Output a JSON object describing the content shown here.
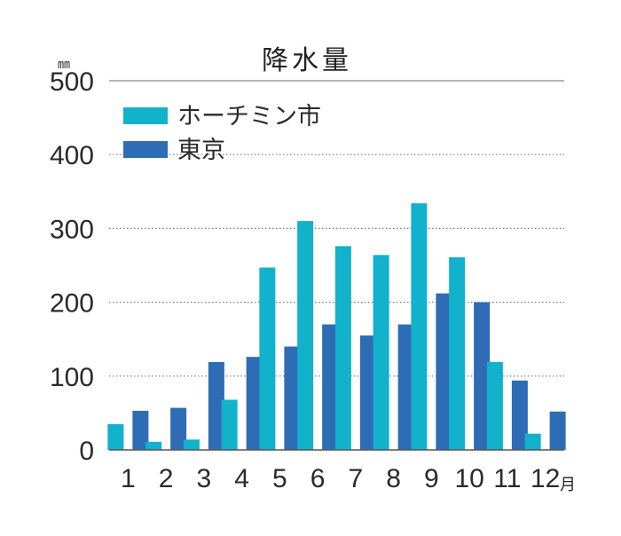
{
  "chart_data": {
    "type": "bar",
    "title": "降水量",
    "y_unit": "㎜",
    "x_unit": "月",
    "categories": [
      "1",
      "2",
      "3",
      "4",
      "5",
      "6",
      "7",
      "8",
      "9",
      "10",
      "11",
      "12"
    ],
    "ylim": [
      0,
      500
    ],
    "yticks": [
      0,
      100,
      200,
      300,
      400,
      500
    ],
    "grid": "dotted horizontal",
    "legend_position": "top-left",
    "series": [
      {
        "name": "ホーチミン市",
        "color": "#12b1cc",
        "values": [
          35,
          11,
          14,
          68,
          247,
          310,
          276,
          264,
          334,
          261,
          119,
          22
        ]
      },
      {
        "name": "東京",
        "color": "#2e6db5",
        "values": [
          53,
          57,
          119,
          126,
          140,
          170,
          155,
          170,
          212,
          200,
          94,
          52
        ]
      }
    ]
  }
}
